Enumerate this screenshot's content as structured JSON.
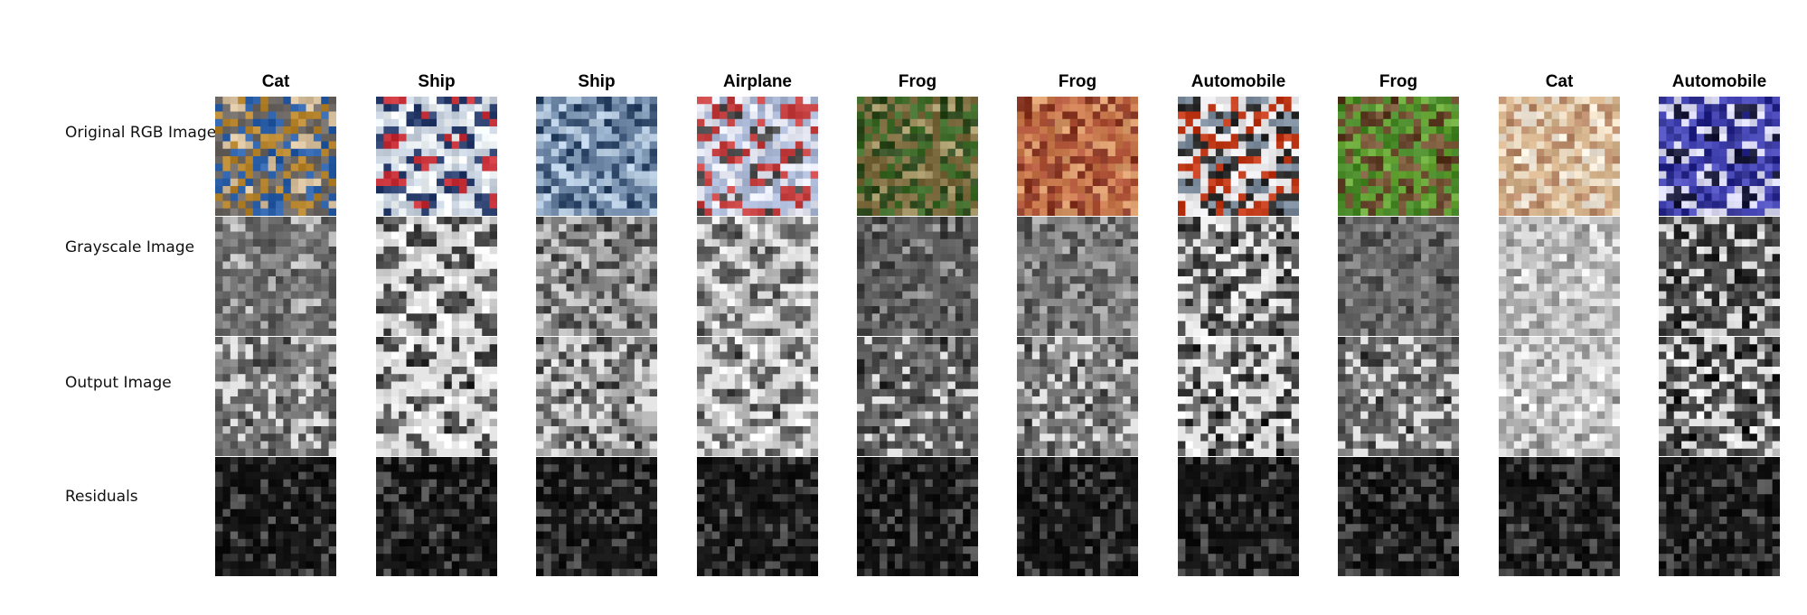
{
  "figure": {
    "row_labels": [
      "Original RGB Image",
      "Grayscale Image",
      "Output Image",
      "Residuals"
    ],
    "columns": [
      {
        "label": "Cat",
        "rgb": [
          "#b8862e",
          "#6f6a66",
          "#2b5fa8",
          "#d9c2a0"
        ]
      },
      {
        "label": "Ship",
        "rgb": [
          "#eef3f6",
          "#c9d3df",
          "#2a3f6e",
          "#c8323a"
        ]
      },
      {
        "label": "Ship",
        "rgb": [
          "#b7cbe0",
          "#6d86a6",
          "#2d4667",
          "#8fa8c4"
        ]
      },
      {
        "label": "Airplane",
        "rgb": [
          "#e3e6f0",
          "#a9b6d4",
          "#c64242",
          "#4b4b4b"
        ]
      },
      {
        "label": "Frog",
        "rgb": [
          "#3e6b2a",
          "#7a6a3e",
          "#2f4a1f",
          "#a89a6a"
        ]
      },
      {
        "label": "Frog",
        "rgb": [
          "#b0553a",
          "#c87a4e",
          "#8a3a26",
          "#d89a6a"
        ]
      },
      {
        "label": "Automobile",
        "rgb": [
          "#c03a1a",
          "#e8e8ea",
          "#2a2a2a",
          "#7a8a9a"
        ]
      },
      {
        "label": "Frog",
        "rgb": [
          "#7a5a3a",
          "#4a8a2a",
          "#6aa83a",
          "#5a3a22"
        ]
      },
      {
        "label": "Cat",
        "rgb": [
          "#e8d8c0",
          "#d2b08a",
          "#b88a6a",
          "#f0e6d8"
        ]
      },
      {
        "label": "Automobile",
        "rgb": [
          "#2a2a8a",
          "#4a4ab8",
          "#d8d8f0",
          "#1a1a3a"
        ]
      }
    ]
  }
}
